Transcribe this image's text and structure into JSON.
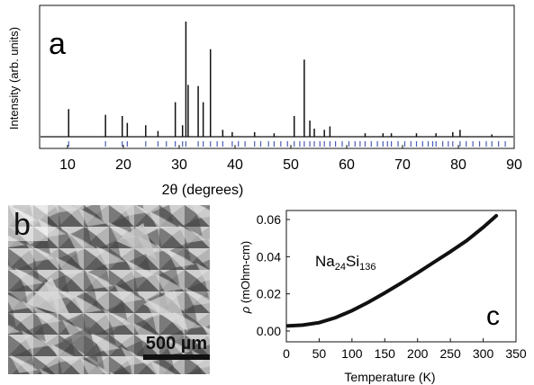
{
  "panels": {
    "a": {
      "label": "a"
    },
    "b": {
      "label": "b",
      "scale_bar_text": "500 µm"
    },
    "c": {
      "label": "c",
      "compound": "Na",
      "compound_sub1": "24",
      "compound_mid": "Si",
      "compound_sub2": "136"
    }
  },
  "chart_data": [
    {
      "type": "line",
      "panel": "a",
      "xlabel_prefix": "2",
      "xlabel_theta": "θ",
      "xlabel_suffix": " (degrees)",
      "ylabel": "Intensity (arb. units)",
      "xlim": [
        5,
        90
      ],
      "ylim": [
        0,
        100
      ],
      "x_ticks": [
        10,
        20,
        30,
        40,
        50,
        60,
        70,
        80,
        90
      ],
      "y_ticks_visible": false,
      "peaks": [
        {
          "x": 10.2,
          "y": 24
        },
        {
          "x": 16.8,
          "y": 19
        },
        {
          "x": 19.8,
          "y": 18
        },
        {
          "x": 20.7,
          "y": 12
        },
        {
          "x": 24.0,
          "y": 10
        },
        {
          "x": 26.2,
          "y": 5
        },
        {
          "x": 29.3,
          "y": 30
        },
        {
          "x": 30.6,
          "y": 10
        },
        {
          "x": 31.2,
          "y": 100
        },
        {
          "x": 31.6,
          "y": 45
        },
        {
          "x": 33.4,
          "y": 44
        },
        {
          "x": 34.3,
          "y": 30
        },
        {
          "x": 35.6,
          "y": 76
        },
        {
          "x": 37.8,
          "y": 6
        },
        {
          "x": 39.5,
          "y": 4
        },
        {
          "x": 43.5,
          "y": 4
        },
        {
          "x": 47.0,
          "y": 3
        },
        {
          "x": 50.6,
          "y": 18
        },
        {
          "x": 52.4,
          "y": 67
        },
        {
          "x": 53.4,
          "y": 14
        },
        {
          "x": 54.2,
          "y": 7
        },
        {
          "x": 56.0,
          "y": 6
        },
        {
          "x": 57.0,
          "y": 9
        },
        {
          "x": 63.3,
          "y": 3
        },
        {
          "x": 66.5,
          "y": 3
        },
        {
          "x": 68.0,
          "y": 3
        },
        {
          "x": 72.5,
          "y": 3
        },
        {
          "x": 76.0,
          "y": 3
        },
        {
          "x": 79.0,
          "y": 4
        },
        {
          "x": 80.3,
          "y": 6
        },
        {
          "x": 86.0,
          "y": 2
        }
      ],
      "reflection_ticks": [
        10.2,
        16.8,
        19.8,
        20.7,
        24.0,
        26.2,
        27.7,
        29.3,
        30.6,
        31.2,
        33.4,
        34.3,
        35.6,
        36.8,
        37.8,
        39.5,
        40.6,
        41.8,
        43.5,
        44.6,
        46.0,
        47.0,
        48.2,
        49.4,
        50.6,
        51.6,
        52.4,
        53.4,
        54.2,
        55.2,
        56.0,
        57.0,
        58.0,
        59.2,
        60.4,
        61.5,
        62.4,
        63.3,
        64.4,
        65.5,
        66.5,
        67.3,
        68.0,
        69.2,
        70.4,
        71.5,
        72.5,
        73.6,
        74.6,
        75.4,
        76.0,
        77.2,
        78.2,
        79.0,
        80.3,
        81.4,
        82.6,
        83.8,
        85.0,
        86.0,
        87.2,
        88.4
      ],
      "colors": {
        "pattern": "#111111",
        "reflection_ticks": "#4a5bb5"
      }
    },
    {
      "type": "line",
      "panel": "c",
      "xlabel": "Temperature (K)",
      "ylabel_symbol": "ρ",
      "ylabel_unit": " (mOhm-cm)",
      "xlim": [
        0,
        350
      ],
      "ylim": [
        0,
        0.065
      ],
      "x_ticks": [
        "0",
        "50",
        "100",
        "150",
        "200",
        "250",
        "300",
        "350"
      ],
      "y_ticks": [
        "0.00",
        "0.02",
        "0.04",
        "0.06"
      ],
      "x": [
        2,
        10,
        25,
        50,
        75,
        100,
        125,
        150,
        175,
        200,
        225,
        250,
        275,
        300,
        320
      ],
      "y": [
        0.0028,
        0.0029,
        0.0032,
        0.0045,
        0.0072,
        0.011,
        0.0155,
        0.0205,
        0.0258,
        0.0313,
        0.037,
        0.0427,
        0.0487,
        0.0558,
        0.062
      ],
      "colors": {
        "line": "#111111"
      }
    }
  ]
}
